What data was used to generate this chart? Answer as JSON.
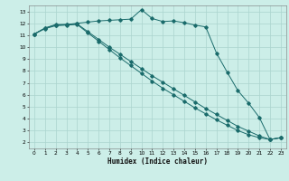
{
  "xlabel": "Humidex (Indice chaleur)",
  "bg_color": "#cceee8",
  "grid_color": "#aad4ce",
  "line_color": "#1a6b6b",
  "xlim": [
    -0.5,
    23.5
  ],
  "ylim": [
    1.5,
    13.5
  ],
  "xticks": [
    0,
    1,
    2,
    3,
    4,
    5,
    6,
    7,
    8,
    9,
    10,
    11,
    12,
    13,
    14,
    15,
    16,
    17,
    18,
    19,
    20,
    21,
    22,
    23
  ],
  "yticks": [
    2,
    3,
    4,
    5,
    6,
    7,
    8,
    9,
    10,
    11,
    12,
    13
  ],
  "line1_x": [
    0,
    1,
    2,
    3,
    4,
    5,
    6,
    7,
    8,
    9,
    10,
    11,
    12,
    13,
    14,
    15,
    16,
    17,
    18,
    19,
    20,
    21,
    22,
    23
  ],
  "line1_y": [
    11.1,
    11.6,
    11.9,
    11.9,
    12.0,
    12.1,
    12.2,
    12.25,
    12.3,
    12.35,
    13.15,
    12.4,
    12.15,
    12.2,
    12.05,
    11.85,
    11.7,
    9.5,
    7.9,
    6.35,
    5.3,
    4.1,
    2.25,
    2.4
  ],
  "line2_x": [
    0,
    1,
    2,
    3,
    4,
    5,
    6,
    7,
    8,
    9,
    10,
    11,
    12,
    13,
    14,
    15,
    16,
    17,
    18,
    19,
    20,
    21,
    22,
    23
  ],
  "line2_y": [
    11.1,
    11.6,
    11.85,
    11.9,
    11.95,
    11.3,
    10.65,
    10.0,
    9.4,
    8.8,
    8.2,
    7.6,
    7.05,
    6.5,
    5.95,
    5.4,
    4.85,
    4.35,
    3.85,
    3.35,
    2.95,
    2.55,
    2.25,
    2.4
  ],
  "line3_x": [
    0,
    1,
    2,
    3,
    4,
    5,
    6,
    7,
    8,
    9,
    10,
    11,
    12,
    13,
    14,
    15,
    16,
    17,
    18,
    19,
    20,
    21,
    22,
    23
  ],
  "line3_y": [
    11.1,
    11.55,
    11.8,
    11.85,
    11.9,
    11.2,
    10.5,
    9.8,
    9.1,
    8.45,
    7.8,
    7.15,
    6.55,
    6.0,
    5.45,
    4.9,
    4.4,
    3.9,
    3.45,
    3.0,
    2.65,
    2.4,
    2.25,
    2.4
  ]
}
